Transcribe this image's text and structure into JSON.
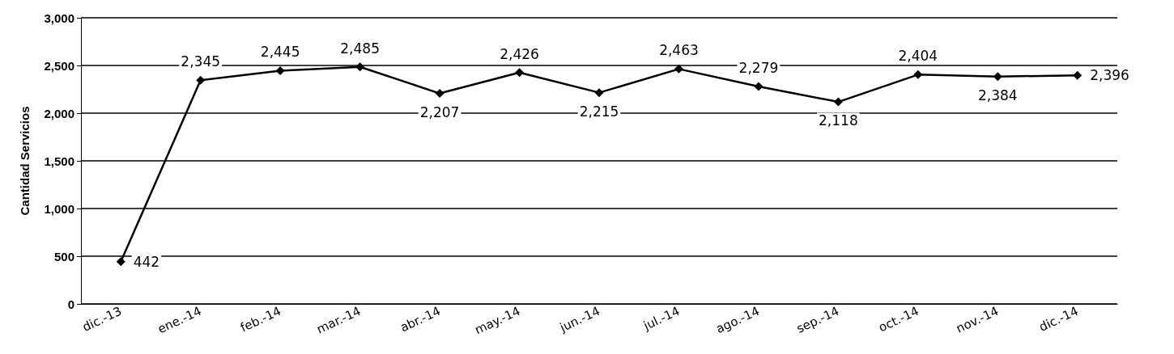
{
  "chart_data": {
    "type": "line",
    "ylabel": "Cantidad Servicios",
    "categories": [
      "dic.-13",
      "ene.-14",
      "feb.-14",
      "mar.-14",
      "abr.-14",
      "may.-14",
      "jun.-14",
      "jul.-14",
      "ago.-14",
      "sep.-14",
      "oct.-14",
      "nov.-14",
      "dic.-14"
    ],
    "series": [
      {
        "color": "#000000",
        "values": [
          442,
          2345,
          2445,
          2485,
          2207,
          2426,
          2215,
          2463,
          2279,
          2118,
          2404,
          2384,
          2396
        ],
        "value_labels": [
          "442",
          "2,345",
          "2,445",
          "2,485",
          "2,207",
          "2,426",
          "2,215",
          "2,463",
          "2,279",
          "2,118",
          "2,404",
          "2,384",
          "2,396"
        ]
      }
    ],
    "ylim": [
      0,
      3000
    ],
    "yticks": [
      0,
      500,
      {
        "value": 1000,
        "label": "1,000"
      },
      {
        "value": 1500,
        "label": "1,500"
      },
      {
        "value": 2000,
        "label": "2,000"
      },
      {
        "value": 2500,
        "label": "2,500"
      },
      {
        "value": 3000,
        "label": "3,000"
      }
    ],
    "grid": "y",
    "marker": "diamond",
    "line_style": "solid"
  }
}
